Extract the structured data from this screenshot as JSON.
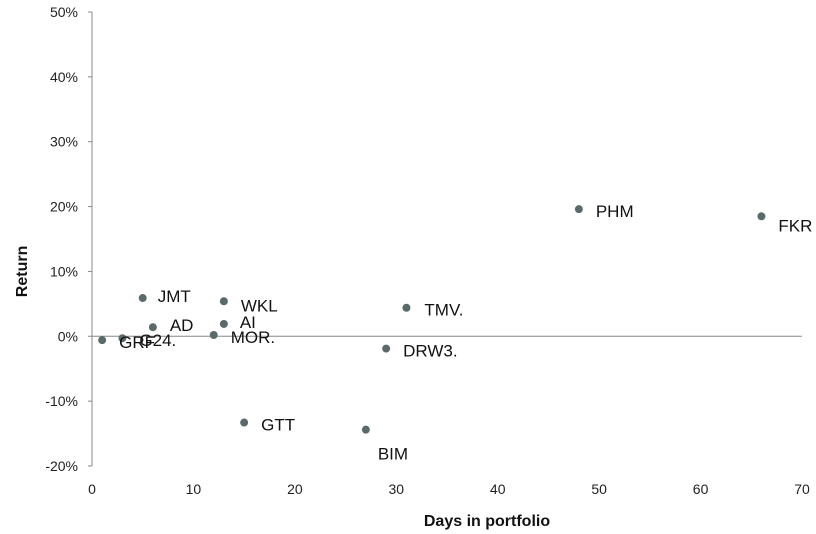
{
  "chart_data": {
    "type": "scatter",
    "title": "",
    "xlabel": "Days in portfolio",
    "ylabel": "Return",
    "xlim": [
      0,
      70
    ],
    "ylim": [
      -20,
      50
    ],
    "x_ticks": [
      "0",
      "10",
      "20",
      "30",
      "40",
      "50",
      "60",
      "70"
    ],
    "y_ticks": [
      "-20%",
      "-10%",
      "0%",
      "10%",
      "20%",
      "30%",
      "40%",
      "50%"
    ],
    "grid": false,
    "legend": "none",
    "point_color": "#5a6a6a",
    "points": [
      {
        "label": "GRF",
        "x": 1,
        "y": -0.6
      },
      {
        "label": "G24.",
        "x": 3,
        "y": -0.3
      },
      {
        "label": "JMT",
        "x": 5,
        "y": 5.9
      },
      {
        "label": "AD",
        "x": 6,
        "y": 1.4
      },
      {
        "label": "MOR.",
        "x": 12,
        "y": 0.2
      },
      {
        "label": "WKL",
        "x": 13,
        "y": 5.4
      },
      {
        "label": "AI",
        "x": 13,
        "y": 1.9
      },
      {
        "label": "GTT",
        "x": 15,
        "y": -13.3
      },
      {
        "label": "BIM",
        "x": 27,
        "y": -14.4
      },
      {
        "label": "DRW3.",
        "x": 29,
        "y": -1.9
      },
      {
        "label": "TMV.",
        "x": 31,
        "y": 4.4
      },
      {
        "label": "PHM",
        "x": 48,
        "y": 19.6
      },
      {
        "label": "FKR",
        "x": 66,
        "y": 18.5
      }
    ]
  }
}
